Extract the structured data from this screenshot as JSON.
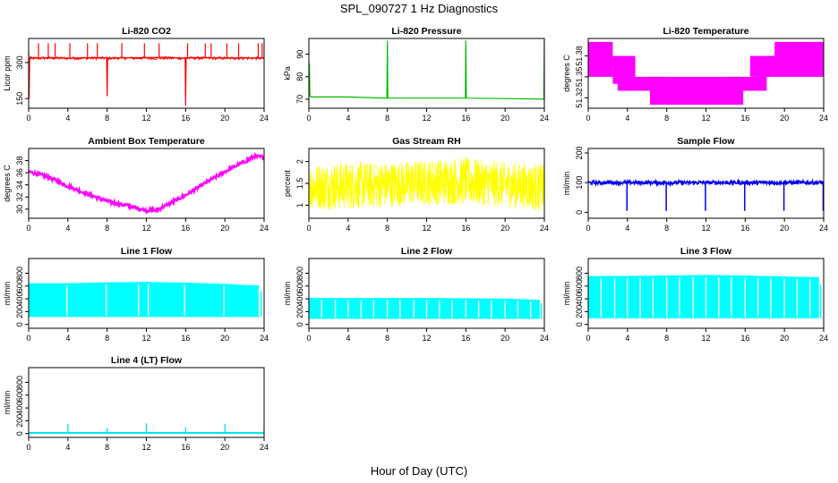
{
  "figure": {
    "title": "SPL_090727  1 Hz Diagnostics",
    "xlabel": "Hour of Day (UTC)"
  },
  "chart_data": [
    {
      "type": "line",
      "title": "Li-820 CO2",
      "ylabel": "Licor ppm",
      "color": "#ff0000",
      "xlim": [
        0,
        24
      ],
      "xticks": [
        0,
        4,
        8,
        12,
        16,
        20,
        24
      ],
      "ylim": [
        110,
        400
      ],
      "yticks": [
        150,
        300
      ],
      "x": [
        0,
        0.05,
        0.1,
        0.15,
        0.2,
        2,
        4,
        6,
        7.95,
        8.0,
        8.05,
        10,
        12,
        14,
        15.95,
        16.0,
        16.05,
        18,
        20,
        22,
        24
      ],
      "values": [
        350,
        150,
        310,
        320,
        317,
        320,
        318,
        320,
        320,
        160,
        318,
        320,
        320,
        322,
        318,
        120,
        320,
        320,
        318,
        320,
        318
      ],
      "spikes_x": [
        1,
        2,
        2.7,
        4.2,
        6,
        7,
        9.5,
        11.8,
        13.3,
        16.2,
        18,
        18.6,
        20.2,
        21.4,
        23.4,
        23.8
      ],
      "spike_value": 380
    },
    {
      "type": "line",
      "title": "Li-820 Pressure",
      "ylabel": "kPa",
      "color": "#00bb00",
      "xlim": [
        0,
        24
      ],
      "xticks": [
        0,
        4,
        8,
        12,
        16,
        20,
        24
      ],
      "ylim": [
        66,
        97
      ],
      "yticks": [
        70,
        80,
        90
      ],
      "x": [
        0,
        0.05,
        0.1,
        0.2,
        4,
        7.95,
        8.0,
        8.05,
        12,
        15.95,
        16.0,
        16.05,
        20,
        23.95,
        24.0
      ],
      "values": [
        70,
        86,
        72,
        71,
        71,
        70.5,
        96,
        70.5,
        70.5,
        70.5,
        96,
        70.5,
        70.3,
        70,
        96
      ]
    },
    {
      "type": "step",
      "title": "Li-820 Temperature",
      "ylabel": "degrees C",
      "color": "#ff00ff",
      "xlim": [
        0,
        24
      ],
      "xticks": [
        0,
        4,
        8,
        12,
        16,
        20,
        24
      ],
      "ylim": [
        51.305,
        51.405
      ],
      "yticks": [
        51.32,
        51.35,
        51.38
      ],
      "bands": [
        {
          "x0": 0,
          "x1": 2.5,
          "lo": 51.35,
          "hi": 51.4
        },
        {
          "x0": 2.5,
          "x1": 4.8,
          "lo": 51.34,
          "hi": 51.38
        },
        {
          "x0": 3.0,
          "x1": 7.5,
          "lo": 51.33,
          "hi": 51.35
        },
        {
          "x0": 6.3,
          "x1": 15.8,
          "lo": 51.31,
          "hi": 51.35
        },
        {
          "x0": 14.2,
          "x1": 18.2,
          "lo": 51.33,
          "hi": 51.35
        },
        {
          "x0": 16.5,
          "x1": 24,
          "lo": 51.35,
          "hi": 51.38
        },
        {
          "x0": 19.0,
          "x1": 24,
          "lo": 51.365,
          "hi": 51.4
        }
      ]
    },
    {
      "type": "line",
      "title": "Ambient Box Temperature",
      "ylabel": "degrees C",
      "color": "#ff00ff",
      "xlim": [
        0,
        24
      ],
      "xticks": [
        0,
        4,
        8,
        12,
        16,
        20,
        24
      ],
      "ylim": [
        28.5,
        40
      ],
      "yticks": [
        30,
        32,
        34,
        36,
        38
      ],
      "x": [
        0,
        2,
        4,
        6,
        8,
        10,
        12,
        13,
        14,
        16,
        18,
        20,
        22,
        23,
        24
      ],
      "values": [
        36.2,
        35.3,
        33.8,
        32.5,
        31.3,
        30.6,
        29.8,
        29.8,
        30.6,
        32.3,
        34.3,
        36.2,
        37.8,
        38.7,
        38.5
      ]
    },
    {
      "type": "line",
      "title": "Gas Stream RH",
      "ylabel": "percent",
      "color": "#ffff00",
      "xlim": [
        0,
        24
      ],
      "xticks": [
        0,
        4,
        8,
        12,
        16,
        20,
        24
      ],
      "ylim": [
        0.7,
        2.3
      ],
      "yticks": [
        1.0,
        1.5,
        2.0
      ],
      "band_x": [
        0,
        4,
        8,
        12,
        16,
        20,
        24
      ],
      "band_lo": [
        0.9,
        0.9,
        0.95,
        1.0,
        1.0,
        0.95,
        0.85
      ],
      "band_hi": [
        1.95,
        2.0,
        2.0,
        2.05,
        2.1,
        2.0,
        1.95
      ]
    },
    {
      "type": "line",
      "title": "Sample Flow",
      "ylabel": "ml/min",
      "color": "#0000ee",
      "xlim": [
        0,
        24
      ],
      "xticks": [
        0,
        4,
        8,
        12,
        16,
        20,
        24
      ],
      "ylim": [
        -20,
        215
      ],
      "yticks": [
        0,
        100,
        200
      ],
      "baseline": 100,
      "noise": 12,
      "dips_x": [
        4,
        8,
        12,
        16,
        20,
        24
      ],
      "dip_value": 5
    },
    {
      "type": "area",
      "title": "Line 1 Flow",
      "ylabel": "ml/min",
      "color": "#00ffff",
      "xlim": [
        0,
        24
      ],
      "xticks": [
        0,
        4,
        8,
        12,
        16,
        20,
        24
      ],
      "ylim": [
        -60,
        1030
      ],
      "yticks": [
        0,
        200,
        400,
        600,
        800
      ],
      "lo": 120,
      "x": [
        0,
        4,
        8,
        12,
        16,
        20,
        24
      ],
      "hi": [
        640,
        640,
        655,
        660,
        650,
        630,
        600
      ],
      "gaps_x": [
        3.9,
        7.9,
        11.2,
        12.2,
        15.9,
        19.9,
        23.5
      ],
      "tail": 520
    },
    {
      "type": "area",
      "title": "Line 2 Flow",
      "ylabel": "ml/min",
      "color": "#00ffff",
      "xlim": [
        0,
        24
      ],
      "xticks": [
        0,
        4,
        8,
        12,
        16,
        20,
        24
      ],
      "ylim": [
        -60,
        1030
      ],
      "yticks": [
        0,
        200,
        400,
        600,
        800
      ],
      "lo": 90,
      "x": [
        0,
        4,
        8,
        12,
        16,
        20,
        24
      ],
      "hi": [
        410,
        410,
        410,
        410,
        405,
        400,
        380
      ],
      "gaps_x": [
        1.3,
        2.7,
        4.0,
        5.3,
        6.6,
        8.0,
        9.3,
        10.7,
        12.0,
        13.3,
        14.6,
        16.0,
        17.3,
        18.6,
        20.0,
        21.3,
        22.6,
        23.9
      ],
      "tail": 330
    },
    {
      "type": "area",
      "title": "Line 3 Flow",
      "ylabel": "ml/min",
      "color": "#00ffff",
      "xlim": [
        0,
        24
      ],
      "xticks": [
        0,
        4,
        8,
        12,
        16,
        20,
        24
      ],
      "ylim": [
        -60,
        1030
      ],
      "yticks": [
        0,
        200,
        400,
        600,
        800
      ],
      "lo": 100,
      "x": [
        0,
        4,
        8,
        12,
        16,
        20,
        24
      ],
      "hi": [
        750,
        755,
        760,
        770,
        760,
        745,
        735
      ],
      "gaps_x": [
        1.3,
        2.7,
        4.0,
        5.3,
        6.6,
        8.0,
        9.3,
        10.7,
        12.0,
        13.3,
        14.6,
        16.0,
        17.3,
        18.6,
        20.0,
        21.3,
        22.6,
        23.9
      ],
      "tail": 620
    },
    {
      "type": "line",
      "title": "Line 4 (LT) Flow",
      "ylabel": "ml/min",
      "color": "#00e5e5",
      "xlim": [
        0,
        24
      ],
      "xticks": [
        0,
        4,
        8,
        12,
        16,
        20,
        24
      ],
      "ylim": [
        -60,
        1030
      ],
      "yticks": [
        0,
        200,
        400,
        600,
        800
      ],
      "baseline": 10,
      "spikes_x": [
        4,
        8,
        12,
        16,
        20,
        24
      ],
      "spikes_v": [
        150,
        90,
        160,
        100,
        150,
        80
      ]
    }
  ]
}
